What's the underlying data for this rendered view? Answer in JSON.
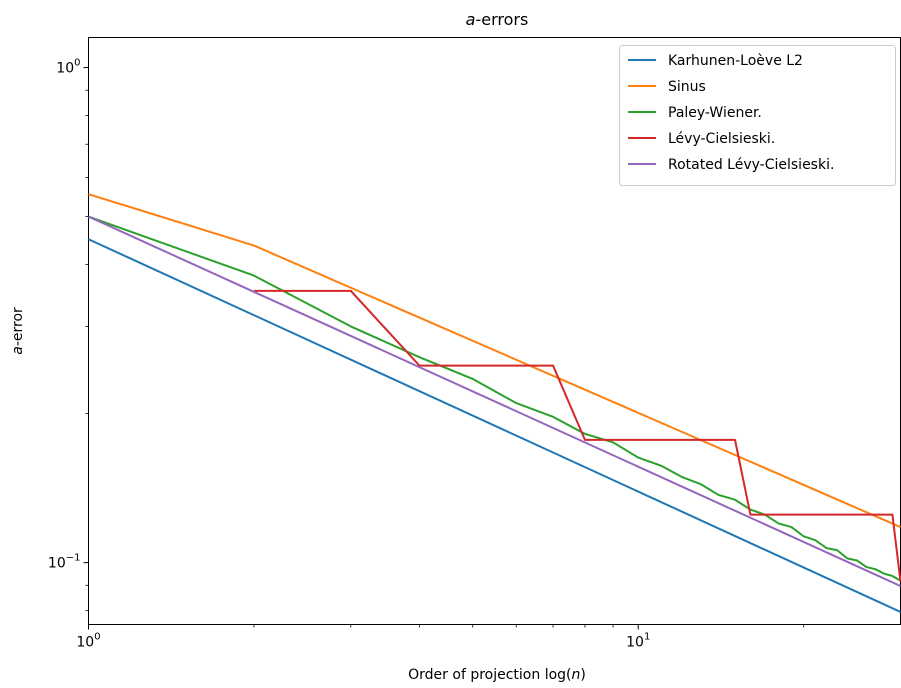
{
  "chart_data": {
    "type": "line",
    "title_var": "a",
    "title_rest": "-errors",
    "xlabel_prefix": "Order of projection log(",
    "xlabel_var": "n",
    "xlabel_suffix": ")",
    "ylabel_var": "a",
    "ylabel_rest": "-error",
    "xscale": "log",
    "yscale": "log",
    "xlim": [
      1,
      30
    ],
    "ylim": [
      0.075,
      1.15
    ],
    "grid": false,
    "legend_position": "top-right",
    "x_ticks": [
      {
        "value": 1,
        "base": "10",
        "exp": "0"
      },
      {
        "value": 10,
        "base": "10",
        "exp": "1"
      }
    ],
    "y_ticks": [
      {
        "value": 1,
        "base": "10",
        "exp": "0"
      },
      {
        "value": 0.1,
        "base": "10",
        "exp": "−1"
      }
    ],
    "series": [
      {
        "name": "Karhunen-Loève L2",
        "color": "#1f77b4",
        "x": [
          1,
          30
        ],
        "y": [
          0.45,
          0.0795
        ]
      },
      {
        "name": "Sinus",
        "color": "#ff7f0e",
        "x": [
          1,
          2,
          30
        ],
        "y": [
          0.555,
          0.437,
          0.118
        ]
      },
      {
        "name": "Paley-Wiener.",
        "color": "#2ca02c",
        "x": [
          1,
          2,
          3,
          4,
          5,
          6,
          7,
          8,
          9,
          10,
          11,
          12,
          13,
          14,
          15,
          16,
          17,
          18,
          19,
          20,
          21,
          22,
          23,
          24,
          25,
          26,
          27,
          28,
          29,
          30
        ],
        "y": [
          0.5,
          0.38,
          0.3,
          0.26,
          0.235,
          0.21,
          0.197,
          0.182,
          0.175,
          0.163,
          0.157,
          0.149,
          0.144,
          0.137,
          0.134,
          0.128,
          0.125,
          0.12,
          0.118,
          0.113,
          0.111,
          0.107,
          0.106,
          0.102,
          0.101,
          0.098,
          0.097,
          0.095,
          0.094,
          0.092
        ]
      },
      {
        "name": "Lévy-Cielsieski.",
        "color": "#d62728",
        "x": [
          2,
          3,
          4,
          7,
          8,
          15,
          16,
          29,
          30
        ],
        "y": [
          0.354,
          0.354,
          0.25,
          0.25,
          0.177,
          0.177,
          0.125,
          0.125,
          0.0916
        ]
      },
      {
        "name": "Rotated Lévy-Cielsieski.",
        "color": "#9467bd",
        "x": [
          1,
          30
        ],
        "y": [
          0.5,
          0.0897
        ]
      }
    ]
  }
}
